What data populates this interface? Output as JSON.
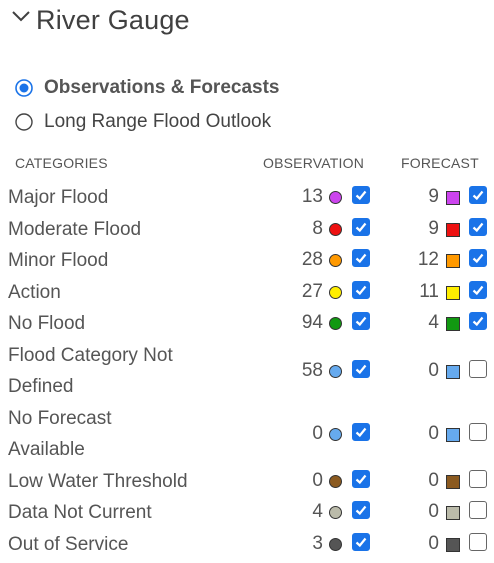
{
  "header": {
    "title": "River Gauge"
  },
  "modes": [
    {
      "label": "Observations & Forecasts",
      "selected": true
    },
    {
      "label": "Long Range Flood Outlook",
      "selected": false
    }
  ],
  "columns": {
    "categories": "CATEGORIES",
    "observation": "OBSERVATION",
    "forecast": "FORECAST"
  },
  "rows": [
    {
      "lines": [
        "Major Flood"
      ],
      "obs_count": "13",
      "fc_count": "9",
      "color": "#cc44ee",
      "obs_checked": true,
      "fc_checked": true
    },
    {
      "lines": [
        "Moderate Flood"
      ],
      "obs_count": "8",
      "fc_count": "9",
      "color": "#ee1111",
      "obs_checked": true,
      "fc_checked": true
    },
    {
      "lines": [
        "Minor Flood"
      ],
      "obs_count": "28",
      "fc_count": "12",
      "color": "#ff9900",
      "obs_checked": true,
      "fc_checked": true
    },
    {
      "lines": [
        "Action"
      ],
      "obs_count": "27",
      "fc_count": "11",
      "color": "#ffee00",
      "obs_checked": true,
      "fc_checked": true
    },
    {
      "lines": [
        "No Flood"
      ],
      "obs_count": "94",
      "fc_count": "4",
      "color": "#119911",
      "obs_checked": true,
      "fc_checked": true
    },
    {
      "lines": [
        "Flood Category Not",
        "Defined"
      ],
      "obs_count": "58",
      "fc_count": "0",
      "color": "#66aaee",
      "obs_checked": true,
      "fc_checked": false
    },
    {
      "lines": [
        "No Forecast",
        "Available"
      ],
      "obs_count": "0",
      "fc_count": "0",
      "color": "#66aaee",
      "obs_checked": true,
      "fc_checked": false
    },
    {
      "lines": [
        "Low Water Threshold"
      ],
      "obs_count": "0",
      "fc_count": "0",
      "color": "#8b5a20",
      "obs_checked": true,
      "fc_checked": false
    },
    {
      "lines": [
        "Data Not Current"
      ],
      "obs_count": "4",
      "fc_count": "0",
      "color": "#bbbbaa",
      "obs_checked": true,
      "fc_checked": false
    },
    {
      "lines": [
        "Out of Service"
      ],
      "obs_count": "3",
      "fc_count": "0",
      "color": "#555555",
      "obs_checked": true,
      "fc_checked": false
    }
  ]
}
